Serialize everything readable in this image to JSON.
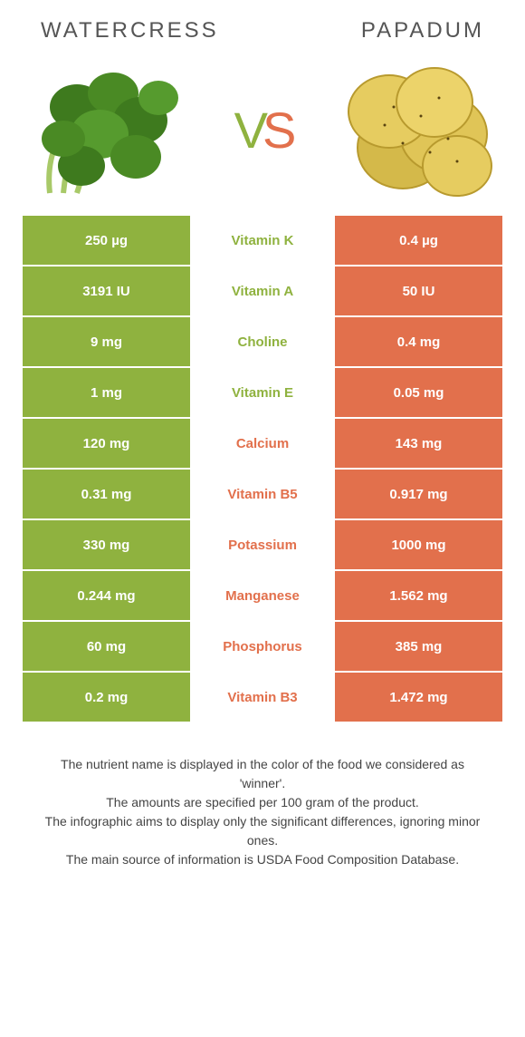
{
  "colors": {
    "green": "#8fb23f",
    "orange": "#e2704c",
    "text": "#555"
  },
  "header": {
    "left_title": "Watercress",
    "right_title": "Papadum",
    "vs_v": "V",
    "vs_s": "S"
  },
  "nutrients": [
    {
      "name": "Vitamin K",
      "left": "250 µg",
      "right": "0.4 µg",
      "winner": "left"
    },
    {
      "name": "Vitamin A",
      "left": "3191 IU",
      "right": "50 IU",
      "winner": "left"
    },
    {
      "name": "Choline",
      "left": "9 mg",
      "right": "0.4 mg",
      "winner": "left"
    },
    {
      "name": "Vitamin E",
      "left": "1 mg",
      "right": "0.05 mg",
      "winner": "left"
    },
    {
      "name": "Calcium",
      "left": "120 mg",
      "right": "143 mg",
      "winner": "right"
    },
    {
      "name": "Vitamin B5",
      "left": "0.31 mg",
      "right": "0.917 mg",
      "winner": "right"
    },
    {
      "name": "Potassium",
      "left": "330 mg",
      "right": "1000 mg",
      "winner": "right"
    },
    {
      "name": "Manganese",
      "left": "0.244 mg",
      "right": "1.562 mg",
      "winner": "right"
    },
    {
      "name": "Phosphorus",
      "left": "60 mg",
      "right": "385 mg",
      "winner": "right"
    },
    {
      "name": "Vitamin B3",
      "left": "0.2 mg",
      "right": "1.472 mg",
      "winner": "right"
    }
  ],
  "footer": {
    "line1": "The nutrient name is displayed in the color of the food we considered as 'winner'.",
    "line2": "The amounts are specified per 100 gram of the product.",
    "line3": "The infographic aims to display only the significant differences, ignoring minor ones.",
    "line4": "The main source of information is USDA Food Composition Database."
  }
}
